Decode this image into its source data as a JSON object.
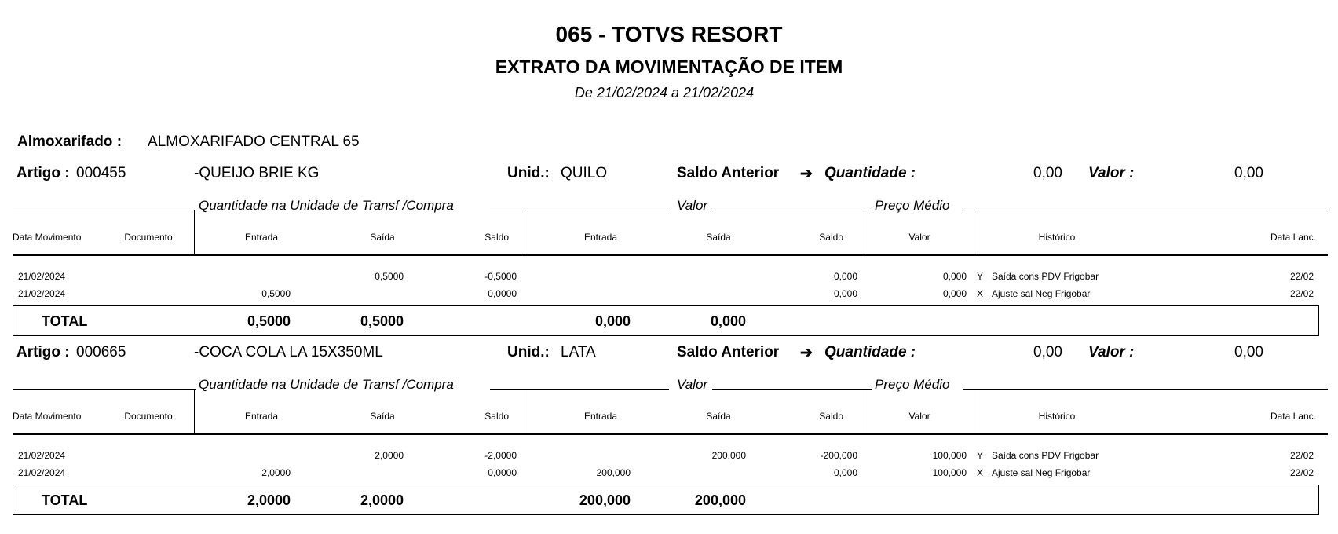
{
  "header": {
    "title": "065 - TOTVS RESORT",
    "subtitle": "EXTRATO DA MOVIMENTAÇÃO DE ITEM",
    "period": "De 21/02/2024 a 21/02/2024"
  },
  "almoxarifado": {
    "label": "Almoxarifado :",
    "value": "ALMOXARIFADO CENTRAL 65"
  },
  "labels": {
    "artigo": "Artigo :",
    "unid": "Unid.:",
    "saldo_anterior": "Saldo Anterior",
    "arrow": "➔",
    "quantidade": "Quantidade :",
    "valor": "Valor :",
    "total": "TOTAL"
  },
  "group_headers": {
    "quantidade": "Quantidade  na Unidade de Transf /Compra",
    "valor": "Valor",
    "preco_medio": "Preço Médio"
  },
  "columns": [
    "Data Movimento",
    "Documento",
    "Entrada",
    "Saída",
    "Saldo",
    "Entrada",
    "Saída",
    "Saldo",
    "Valor",
    "Histórico",
    "Data Lanc."
  ],
  "items": [
    {
      "code": "000455",
      "name": "-QUEIJO BRIE KG",
      "unid": "QUILO",
      "saldo_qtd": "0,00",
      "saldo_valor": "0,00",
      "rows": [
        {
          "data": "21/02/2024",
          "documento": "",
          "q_entrada": "",
          "q_saida": "0,5000",
          "q_saldo": "-0,5000",
          "v_entrada": "",
          "v_saida": "",
          "v_saldo": "0,000",
          "pm_valor": "0,000",
          "tipo": "Y",
          "historico": "Saída cons PDV  Frigobar",
          "data_lanc": "22/02"
        },
        {
          "data": "21/02/2024",
          "documento": "",
          "q_entrada": "0,5000",
          "q_saida": "",
          "q_saldo": "0,0000",
          "v_entrada": "",
          "v_saida": "",
          "v_saldo": "0,000",
          "pm_valor": "0,000",
          "tipo": "X",
          "historico": "Ajuste sal Neg  Frigobar",
          "data_lanc": "22/02"
        }
      ],
      "total": {
        "q_entrada": "0,5000",
        "q_saida": "0,5000",
        "v_entrada": "0,000",
        "v_saida": "0,000"
      }
    },
    {
      "code": "000665",
      "name": "-COCA COLA LA 15X350ML",
      "unid": "LATA",
      "saldo_qtd": "0,00",
      "saldo_valor": "0,00",
      "rows": [
        {
          "data": "21/02/2024",
          "documento": "",
          "q_entrada": "",
          "q_saida": "2,0000",
          "q_saldo": "-2,0000",
          "v_entrada": "",
          "v_saida": "200,000",
          "v_saldo": "-200,000",
          "pm_valor": "100,000",
          "tipo": "Y",
          "historico": "Saída cons PDV  Frigobar",
          "data_lanc": "22/02"
        },
        {
          "data": "21/02/2024",
          "documento": "",
          "q_entrada": "2,0000",
          "q_saida": "",
          "q_saldo": "0,0000",
          "v_entrada": "200,000",
          "v_saida": "",
          "v_saldo": "0,000",
          "pm_valor": "100,000",
          "tipo": "X",
          "historico": "Ajuste sal Neg  Frigobar",
          "data_lanc": "22/02"
        }
      ],
      "total": {
        "q_entrada": "2,0000",
        "q_saida": "2,0000",
        "v_entrada": "200,000",
        "v_saida": "200,000"
      }
    }
  ]
}
